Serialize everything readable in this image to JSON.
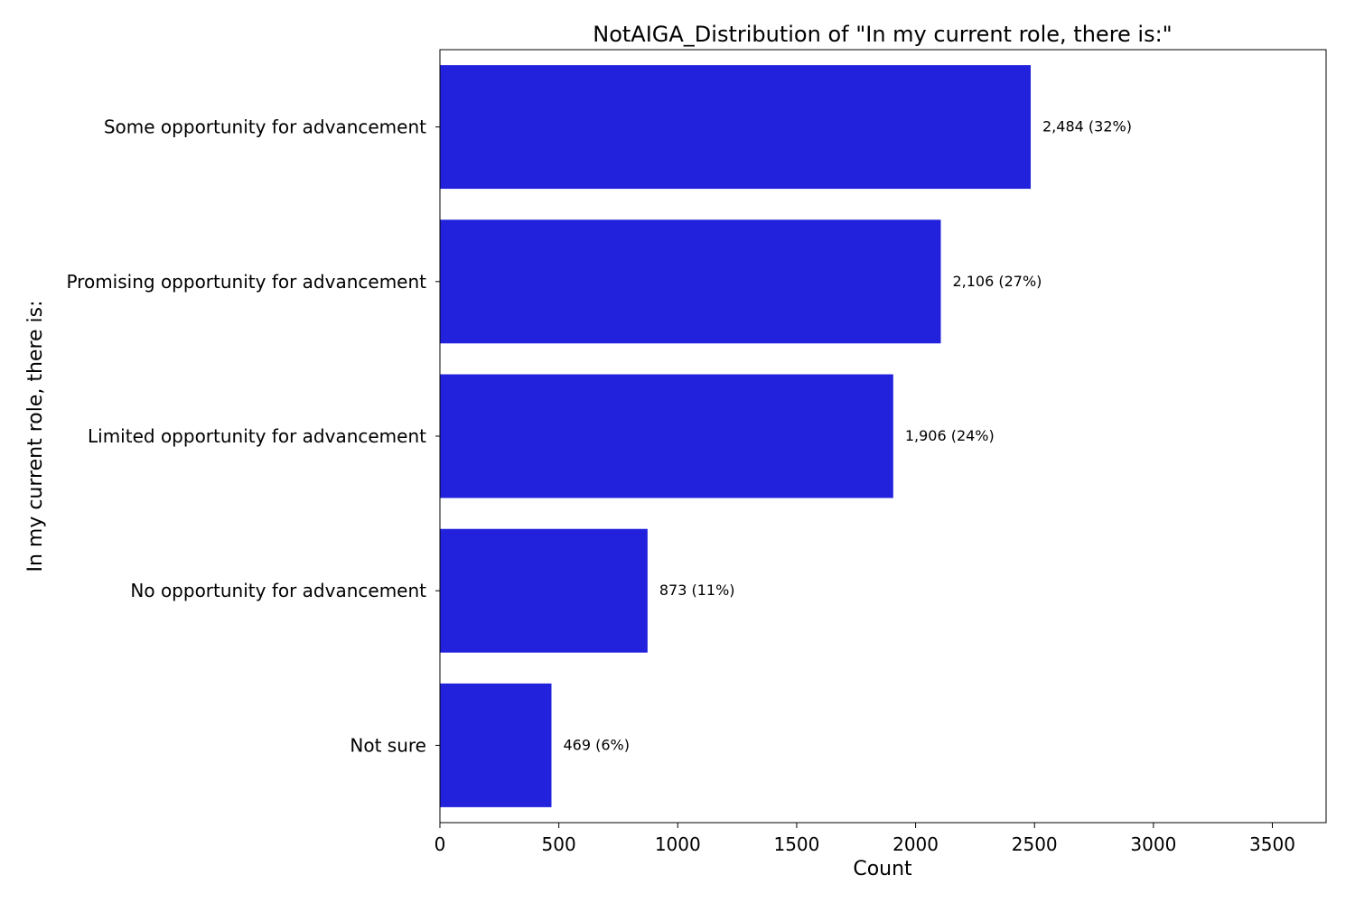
{
  "chart_data": {
    "type": "bar",
    "orientation": "horizontal",
    "title": "NotAIGA_Distribution of \"In my current role, there is:\"",
    "xlabel": "Count",
    "ylabel": "In my current role, there is:",
    "categories": [
      "Some opportunity for advancement",
      "Promising opportunity for advancement",
      "Limited opportunity for advancement",
      "No opportunity for advancement",
      "Not sure"
    ],
    "values": [
      2484,
      2106,
      1906,
      873,
      469
    ],
    "data_labels": [
      "2,484 (32%)",
      "2,106 (27%)",
      "1,906 (24%)",
      "873 (11%)",
      "469 (6%)"
    ],
    "xlim": [
      0,
      3726
    ],
    "xticks": [
      0,
      500,
      1000,
      1500,
      2000,
      2500,
      3000,
      3500
    ],
    "xtick_labels": [
      "0",
      "500",
      "1000",
      "1500",
      "2000",
      "2500",
      "3000",
      "3500"
    ],
    "grid": false,
    "legend": "none",
    "bar_color": "#2222dd"
  }
}
